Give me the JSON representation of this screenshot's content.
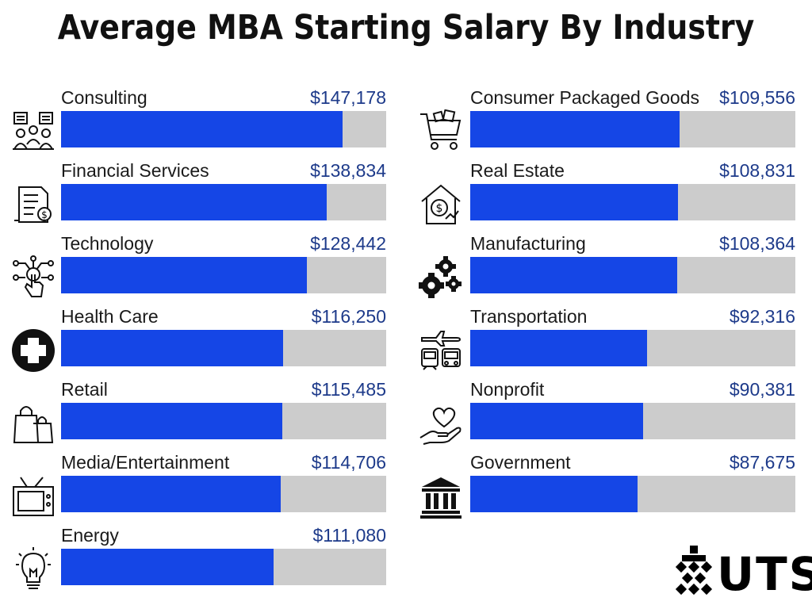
{
  "title": "Average MBA Starting Salary By Industry",
  "logo_text": "UTS",
  "chart_data": {
    "type": "bar",
    "orientation": "horizontal",
    "title": "Average MBA Starting Salary By Industry",
    "xlim": [
      0,
      170000
    ],
    "grid": false,
    "colors": {
      "bar": "#1546e6",
      "track": "#cccccc",
      "value_text": "#1d3a8a"
    },
    "categories": [
      "Consulting",
      "Financial Services",
      "Technology",
      "Health Care",
      "Retail",
      "Media/Entertainment",
      "Energy",
      "Consumer Packaged Goods",
      "Real Estate",
      "Manufacturing",
      "Transportation",
      "Nonprofit",
      "Government"
    ],
    "values": [
      147178,
      138834,
      128442,
      116250,
      115485,
      114706,
      111080,
      109556,
      108831,
      108364,
      92316,
      90381,
      87675
    ],
    "value_labels": [
      "$147,178",
      "$138,834",
      "$128,442",
      "$116,250",
      "$115,485",
      "$114,706",
      "$111,080",
      "$109,556",
      "$108,831",
      "$108,364",
      "$92,316",
      "$90,381",
      "$87,675"
    ],
    "icons": [
      "consulting-meeting-icon",
      "financial-document-icon",
      "touch-circuit-icon",
      "medical-cross-icon",
      "shopping-bags-icon",
      "television-icon",
      "lightbulb-icon",
      "shopping-cart-icon",
      "house-dollar-icon",
      "gears-icon",
      "transport-vehicles-icon",
      "heart-hand-icon",
      "government-building-icon"
    ]
  }
}
